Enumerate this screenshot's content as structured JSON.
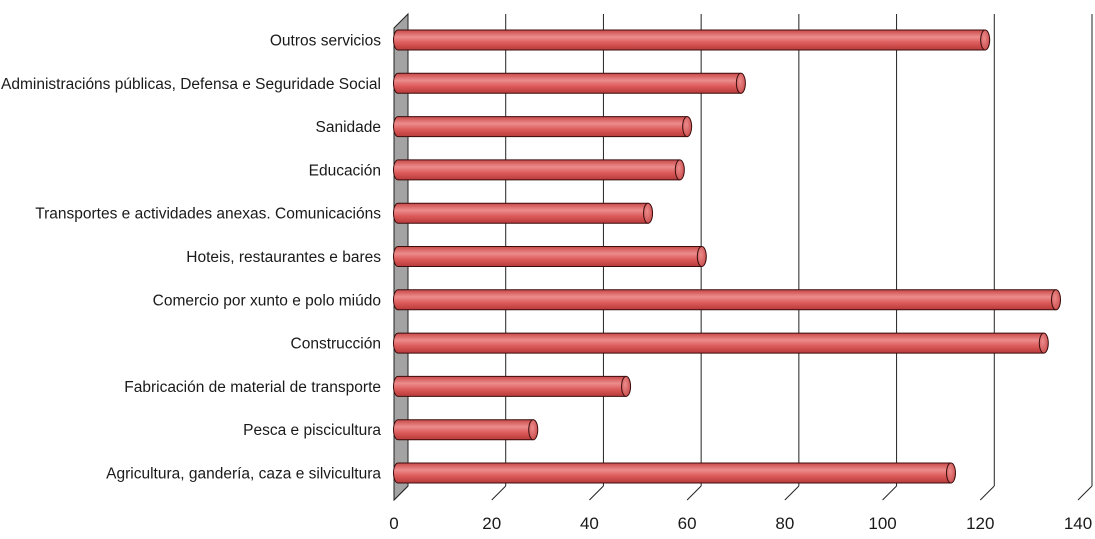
{
  "chart_data": {
    "type": "bar",
    "orientation": "horizontal",
    "title": "",
    "xlabel": "",
    "ylabel": "",
    "categories": [
      "Outros servicios",
      "Administracións públicas, Defensa e Seguridade Social",
      "Sanidade",
      "Educación",
      "Transportes e actividades anexas. Comunicacións",
      "Hoteis, restaurantes e bares",
      "Comercio por xunto e polo miúdo",
      "Construcción",
      "Fabricación de material de transporte",
      "Pesca e piscicultura",
      "Agricultura, gandería, caza e silvicultura"
    ],
    "values": [
      121,
      71,
      60,
      58.5,
      52,
      63,
      135.5,
      133,
      47.5,
      28.5,
      114
    ],
    "xlim": [
      0,
      140
    ],
    "xticks": [
      "0",
      "20",
      "40",
      "60",
      "80",
      "100",
      "120",
      "140"
    ],
    "grid": true,
    "legend": "none",
    "colors": {
      "bar_fill": "#dc5a5a",
      "bar_highlight": "#ec8c8c",
      "bar_shadow": "#b83a3a",
      "bar_stroke": "#3a0d0d",
      "wall_fill": "#a3a3a3",
      "grid": "#222222"
    }
  }
}
